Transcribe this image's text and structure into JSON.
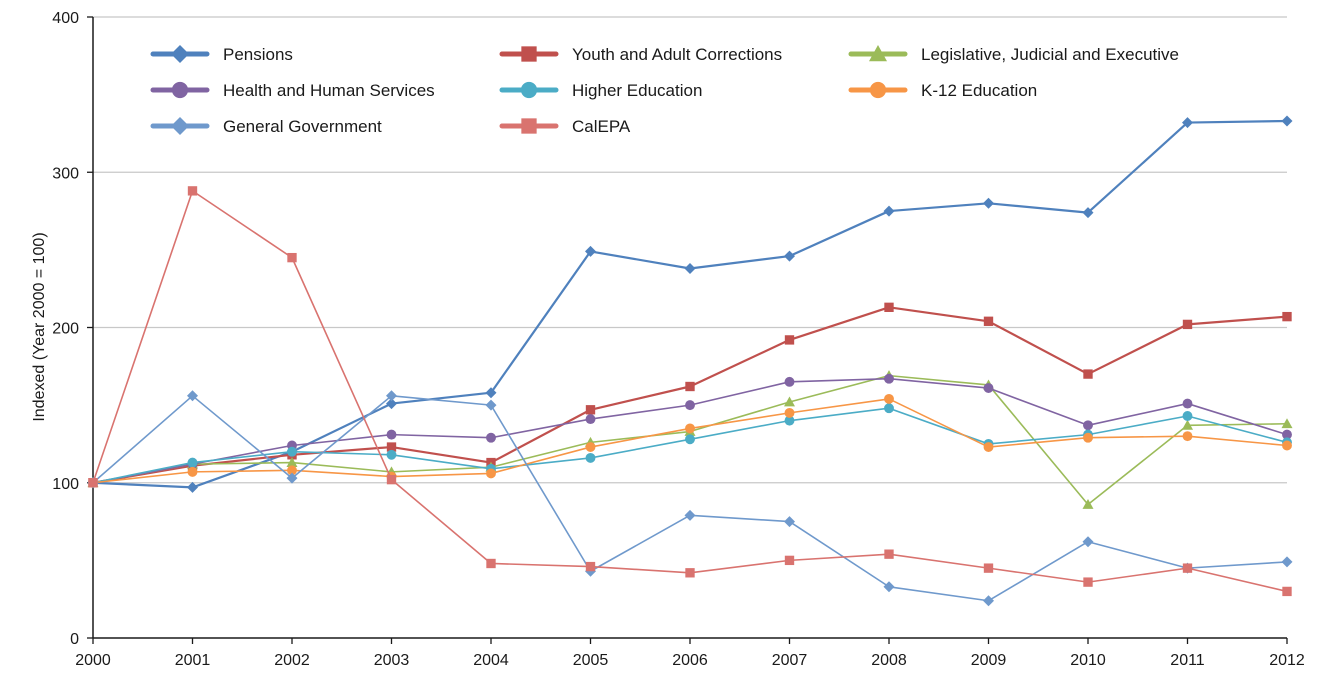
{
  "chart_data": {
    "type": "line",
    "title": "",
    "xlabel": "",
    "ylabel": "Indexed (Year 2000 = 100)",
    "x": [
      "2000",
      "2001",
      "2002",
      "2003",
      "2004",
      "2005",
      "2006",
      "2007",
      "2008",
      "2009",
      "2010",
      "2011",
      "2012"
    ],
    "ylim": [
      0,
      400
    ],
    "yticks": [
      "0",
      "100",
      "200",
      "300",
      "400"
    ],
    "grid": true,
    "legend_position": "top",
    "series": [
      {
        "name": "Pensions",
        "color": "#4f81bd",
        "marker": "diamond",
        "width": 2.2,
        "values": [
          100,
          97,
          120,
          151,
          158,
          249,
          238,
          246,
          275,
          280,
          274,
          332,
          333
        ]
      },
      {
        "name": "Youth and Adult Corrections",
        "color": "#c0504d",
        "marker": "square",
        "width": 2.2,
        "values": [
          100,
          111,
          118,
          123,
          113,
          147,
          162,
          192,
          213,
          204,
          170,
          202,
          207
        ]
      },
      {
        "name": "Legislative, Judicial and Executive",
        "color": "#9bbb59",
        "marker": "triangle",
        "width": 1.6,
        "values": [
          100,
          112,
          113,
          107,
          110,
          126,
          133,
          152,
          169,
          163,
          86,
          137,
          138
        ]
      },
      {
        "name": "Health and Human Services",
        "color": "#8064a2",
        "marker": "circle",
        "width": 1.6,
        "values": [
          100,
          112,
          124,
          131,
          129,
          141,
          150,
          165,
          167,
          161,
          137,
          151,
          131
        ]
      },
      {
        "name": "Higher Education",
        "color": "#4bacc6",
        "marker": "circle",
        "width": 1.6,
        "values": [
          100,
          113,
          120,
          118,
          109,
          116,
          128,
          140,
          148,
          125,
          131,
          143,
          126
        ]
      },
      {
        "name": "K-12 Education",
        "color": "#f79646",
        "marker": "circle",
        "width": 1.6,
        "values": [
          100,
          107,
          108,
          104,
          106,
          123,
          135,
          145,
          154,
          123,
          129,
          130,
          124
        ]
      },
      {
        "name": "General Government",
        "color": "#6f99cc",
        "marker": "diamond",
        "width": 1.6,
        "values": [
          100,
          156,
          103,
          156,
          150,
          43,
          79,
          75,
          33,
          24,
          62,
          45,
          49
        ]
      },
      {
        "name": "CalEPA",
        "color": "#d9736f",
        "marker": "square",
        "width": 1.6,
        "values": [
          100,
          288,
          245,
          102,
          48,
          46,
          42,
          50,
          54,
          45,
          36,
          45,
          30
        ]
      }
    ]
  }
}
